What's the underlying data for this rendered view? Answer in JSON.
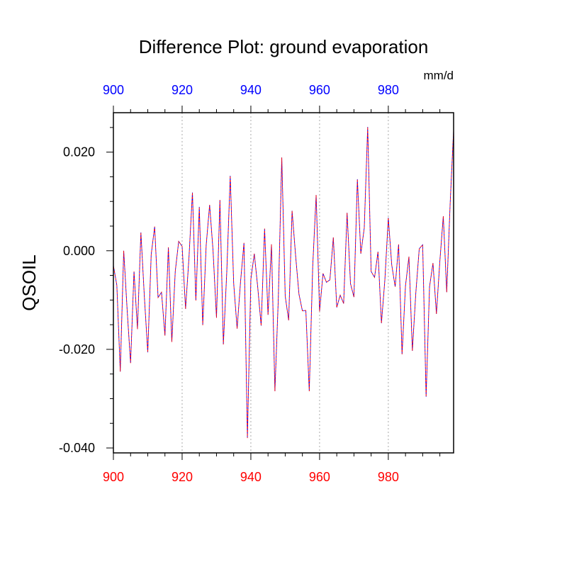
{
  "chart_data": {
    "type": "line",
    "title": "Difference Plot: ground evaporation",
    "units": "mm/d",
    "ylabel": "QSOIL",
    "xlabel": "",
    "xlim": [
      900,
      999
    ],
    "ylim": [
      -0.041,
      0.028
    ],
    "bottom_axis": {
      "color": "#ff0000",
      "ticks": [
        900,
        920,
        940,
        960,
        980
      ],
      "tick_labels": [
        "900",
        "920",
        "940",
        "960",
        "980"
      ]
    },
    "top_axis": {
      "color": "#0000ff",
      "ticks": [
        900,
        920,
        940,
        960,
        980
      ],
      "tick_labels": [
        "900",
        "920",
        "940",
        "960",
        "980"
      ]
    },
    "y_ticks": [
      -0.04,
      -0.02,
      0.0,
      0.02
    ],
    "y_tick_labels": [
      "-0.040",
      "-0.020",
      "0.000",
      "0.020"
    ],
    "grid": {
      "vertical_lines_at": [
        920,
        940,
        960,
        980
      ],
      "style": "dotted",
      "color": "#aaaaaa"
    },
    "series": [
      {
        "color": "#0000ff",
        "dash": "dashed",
        "x": [
          900,
          901,
          902,
          903,
          904,
          905,
          906,
          907,
          908,
          909,
          910,
          911,
          912,
          913,
          914,
          915,
          916,
          917,
          918,
          919,
          920,
          921,
          922,
          923,
          924,
          925,
          926,
          927,
          928,
          929,
          930,
          931,
          932,
          933,
          934,
          935,
          936,
          937,
          938,
          939,
          940,
          941,
          942,
          943,
          944,
          945,
          946,
          947,
          948,
          949,
          950,
          951,
          952,
          953,
          954,
          955,
          956,
          957,
          958,
          959,
          960,
          961,
          962,
          963,
          964,
          965,
          966,
          967,
          968,
          969,
          970,
          971,
          972,
          973,
          974,
          975,
          976,
          977,
          978,
          979,
          980,
          981,
          982,
          983,
          984,
          985,
          986,
          987,
          988,
          989,
          990,
          991,
          992,
          993,
          994,
          995,
          996,
          997,
          998,
          999
        ],
        "y": [
          -0.003,
          -0.007,
          -0.0245,
          0.0,
          -0.012,
          -0.0228,
          -0.0042,
          -0.0159,
          0.0037,
          -0.0092,
          -0.0206,
          -0.0008,
          0.0049,
          -0.0095,
          -0.0084,
          -0.0172,
          0.0007,
          -0.0185,
          -0.0042,
          0.0019,
          0.0009,
          -0.0118,
          -0.0013,
          0.0118,
          -0.0101,
          0.0089,
          -0.0151,
          0.0011,
          0.0093,
          0.0,
          -0.0136,
          0.0103,
          -0.019,
          -0.0042,
          0.0152,
          -0.0066,
          -0.0158,
          -0.0063,
          0.0016,
          -0.038,
          -0.0058,
          -0.0006,
          -0.0074,
          -0.0152,
          0.0045,
          -0.013,
          0.0013,
          -0.0285,
          -0.0095,
          0.0189,
          -0.0092,
          -0.0141,
          0.0081,
          -0.0008,
          -0.0088,
          -0.0122,
          -0.0121,
          -0.0285,
          -0.0032,
          0.0113,
          -0.0123,
          -0.0046,
          -0.0064,
          -0.0059,
          0.0027,
          -0.0115,
          -0.009,
          -0.0107,
          0.0077,
          -0.0067,
          -0.0094,
          0.0145,
          -0.0006,
          0.0046,
          0.0251,
          -0.0042,
          -0.0054,
          -0.0002,
          -0.0147,
          -0.0059,
          0.0067,
          -0.0029,
          -0.0073,
          0.0013,
          -0.021,
          -0.0071,
          -0.0012,
          -0.0203,
          -0.0086,
          0.0004,
          0.0012,
          -0.0296,
          -0.0073,
          -0.0025,
          -0.0128,
          -0.0021,
          0.007,
          -0.0084,
          0.0096,
          0.0245
        ]
      },
      {
        "color": "#ff0000",
        "dash": "dashed",
        "x": [
          900,
          901,
          902,
          903,
          904,
          905,
          906,
          907,
          908,
          909,
          910,
          911,
          912,
          913,
          914,
          915,
          916,
          917,
          918,
          919,
          920,
          921,
          922,
          923,
          924,
          925,
          926,
          927,
          928,
          929,
          930,
          931,
          932,
          933,
          934,
          935,
          936,
          937,
          938,
          939,
          940,
          941,
          942,
          943,
          944,
          945,
          946,
          947,
          948,
          949,
          950,
          951,
          952,
          953,
          954,
          955,
          956,
          957,
          958,
          959,
          960,
          961,
          962,
          963,
          964,
          965,
          966,
          967,
          968,
          969,
          970,
          971,
          972,
          973,
          974,
          975,
          976,
          977,
          978,
          979,
          980,
          981,
          982,
          983,
          984,
          985,
          986,
          987,
          988,
          989,
          990,
          991,
          992,
          993,
          994,
          995,
          996,
          997,
          998,
          999
        ],
        "y": [
          -0.003,
          -0.007,
          -0.0245,
          0.0,
          -0.012,
          -0.0228,
          -0.0042,
          -0.0159,
          0.0037,
          -0.0092,
          -0.0206,
          -0.0008,
          0.0049,
          -0.0095,
          -0.0084,
          -0.0172,
          0.0007,
          -0.0185,
          -0.0042,
          0.0019,
          0.0009,
          -0.0118,
          -0.0013,
          0.0118,
          -0.0101,
          0.0089,
          -0.0151,
          0.0011,
          0.0093,
          0.0,
          -0.0136,
          0.0103,
          -0.019,
          -0.0042,
          0.0152,
          -0.0066,
          -0.0158,
          -0.0063,
          0.0016,
          -0.038,
          -0.0058,
          -0.0006,
          -0.0074,
          -0.0152,
          0.0045,
          -0.013,
          0.0013,
          -0.0285,
          -0.0095,
          0.0189,
          -0.0092,
          -0.0141,
          0.0081,
          -0.0008,
          -0.0088,
          -0.0122,
          -0.0121,
          -0.0285,
          -0.0032,
          0.0113,
          -0.0123,
          -0.0046,
          -0.0064,
          -0.0059,
          0.0027,
          -0.0115,
          -0.009,
          -0.0107,
          0.0077,
          -0.0067,
          -0.0094,
          0.0145,
          -0.0006,
          0.0046,
          0.0251,
          -0.0042,
          -0.0054,
          -0.0002,
          -0.0147,
          -0.0059,
          0.0067,
          -0.0029,
          -0.0073,
          0.0013,
          -0.021,
          -0.0071,
          -0.0012,
          -0.0203,
          -0.0086,
          0.0004,
          0.0012,
          -0.0296,
          -0.0073,
          -0.0025,
          -0.0128,
          -0.0021,
          0.007,
          -0.0084,
          0.0096,
          0.0245
        ]
      }
    ]
  }
}
